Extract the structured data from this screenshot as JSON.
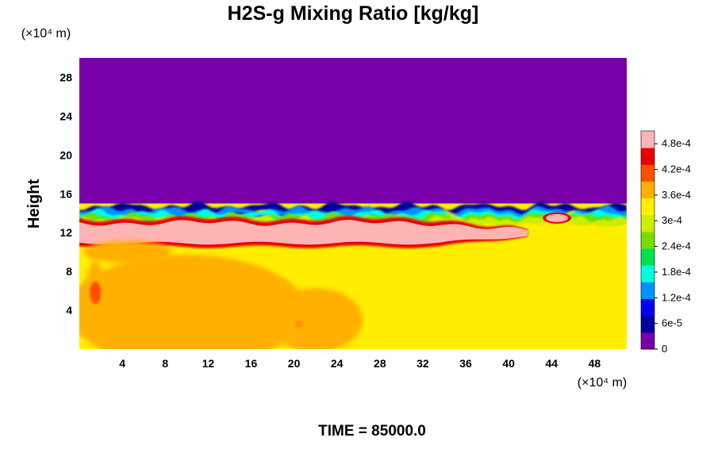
{
  "chart_data": {
    "type": "heatmap",
    "title": "H2S-g Mixing Ratio [kg/kg]",
    "ylabel": "Height",
    "x_unit_label": "(×10⁴ m)",
    "y_unit_label": "(×10⁴ m)",
    "footer": "TIME = 85000.0",
    "xlim": [
      0,
      51
    ],
    "ylim": [
      0,
      30
    ],
    "x_ticks": [
      4,
      8,
      12,
      16,
      20,
      24,
      28,
      32,
      36,
      40,
      44,
      48
    ],
    "y_ticks": [
      4,
      8,
      12,
      16,
      20,
      24,
      28
    ],
    "colorbar": {
      "range": [
        0,
        0.00051
      ],
      "ticks": [
        {
          "value": 0,
          "label": "0"
        },
        {
          "value": 6e-05,
          "label": "6e-5"
        },
        {
          "value": 0.00012,
          "label": "1.2e-4"
        },
        {
          "value": 0.00018,
          "label": "1.8e-4"
        },
        {
          "value": 0.00024,
          "label": "2.4e-4"
        },
        {
          "value": 0.0003,
          "label": "3e-4"
        },
        {
          "value": 0.00036,
          "label": "3.6e-4"
        },
        {
          "value": 0.00042,
          "label": "4.2e-4"
        },
        {
          "value": 0.00048,
          "label": "4.8e-4"
        }
      ],
      "colors": [
        "#7700a8",
        "#0000a0",
        "#0000f0",
        "#0090ff",
        "#00ffdd",
        "#00e050",
        "#77dd00",
        "#ccee00",
        "#ffee00",
        "#ffb000",
        "#ff5000",
        "#e80000",
        "#ffb4b4"
      ]
    },
    "field": {
      "background_value": 0.00034,
      "top_layer": {
        "from_height": 15,
        "value": 0
      },
      "features": [
        {
          "name": "interface-band",
          "x_range": [
            0,
            51
          ],
          "y_center": 13.6,
          "half_width": 1.2,
          "value": 0.0002
        },
        {
          "name": "upper-plume",
          "x_range": [
            0,
            42
          ],
          "y_center": 11.9,
          "half_width": 1.1,
          "value": 0.00051
        },
        {
          "name": "eddy-right",
          "x": 44.5,
          "y": 13.5,
          "value": 0.00051
        },
        {
          "name": "red-left-column",
          "x": 1.5,
          "y": 5.8,
          "value": 0.00044
        },
        {
          "name": "orange-left",
          "x": 4.5,
          "y": 10,
          "value": 0.0004
        },
        {
          "name": "orange-eddy-mid",
          "x": 20.5,
          "y": 2.6,
          "value": 0.0004
        },
        {
          "name": "orange-eddy-left",
          "x": 6.5,
          "y": 2.2,
          "value": 0.0004
        },
        {
          "name": "yellow-lower-left",
          "x": 10,
          "y": 4,
          "value": 0.00037
        }
      ]
    }
  }
}
